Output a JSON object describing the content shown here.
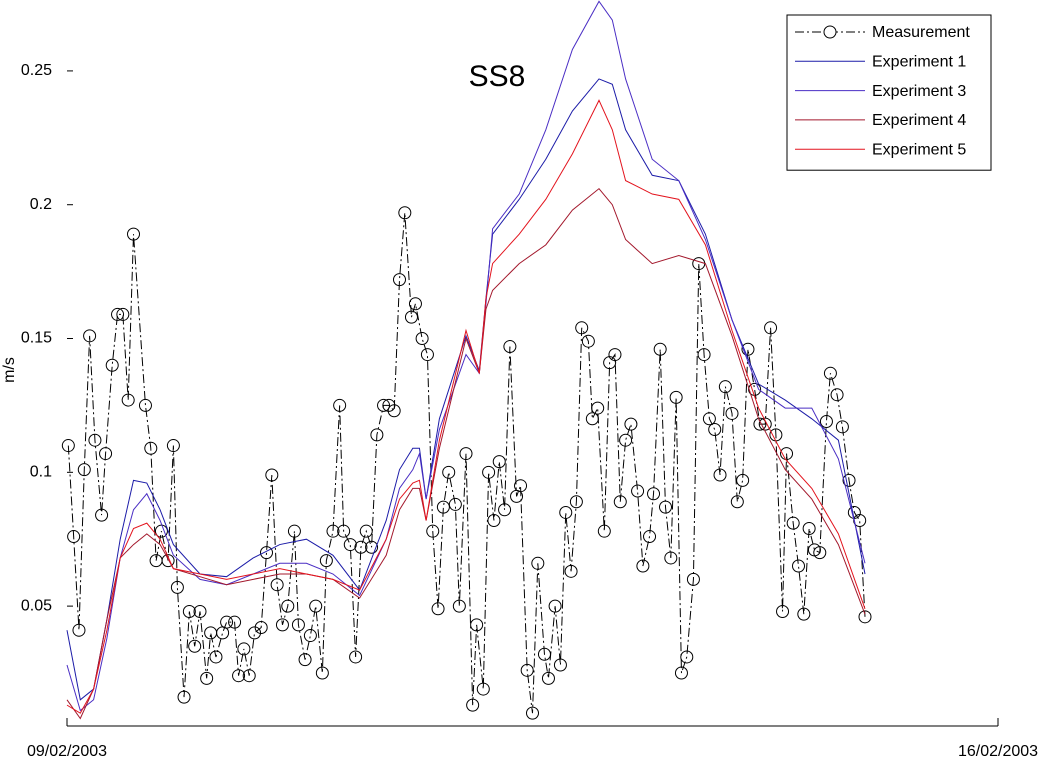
{
  "chart_data": {
    "type": "line",
    "title": "SS8",
    "ylabel": "m/s",
    "xlim": [
      0,
      7
    ],
    "xticks": [
      {
        "value": 0,
        "label": "09/02/2003"
      },
      {
        "value": 7,
        "label": "16/02/2003"
      }
    ],
    "ylim": [
      0.0052,
      0.2765
    ],
    "yticks": [
      0.05,
      0.1,
      0.15,
      0.2,
      0.25
    ],
    "legend": "upper right",
    "series": [
      {
        "name": "Measurement",
        "color": "#000000",
        "marker": "circle",
        "linestyle": "dashdot",
        "x": [
          0.01,
          0.05,
          0.09,
          0.13,
          0.17,
          0.21,
          0.26,
          0.29,
          0.34,
          0.38,
          0.42,
          0.46,
          0.5,
          0.59,
          0.63,
          0.67,
          0.71,
          0.76,
          0.8,
          0.83,
          0.88,
          0.92,
          0.96,
          1.0,
          1.05,
          1.08,
          1.12,
          1.17,
          1.2,
          1.26,
          1.29,
          1.33,
          1.37,
          1.41,
          1.46,
          1.5,
          1.54,
          1.58,
          1.62,
          1.66,
          1.71,
          1.74,
          1.79,
          1.83,
          1.87,
          1.92,
          1.95,
          2.0,
          2.05,
          2.08,
          2.13,
          2.17,
          2.21,
          2.25,
          2.29,
          2.33,
          2.38,
          2.42,
          2.46,
          2.5,
          2.54,
          2.59,
          2.62,
          2.67,
          2.71,
          2.75,
          2.79,
          2.83,
          2.87,
          2.92,
          2.95,
          3.0,
          3.05,
          3.08,
          3.13,
          3.17,
          3.21,
          3.25,
          3.29,
          3.33,
          3.38,
          3.41,
          3.46,
          3.5,
          3.54,
          3.59,
          3.62,
          3.67,
          3.71,
          3.75,
          3.79,
          3.83,
          3.87,
          3.92,
          3.95,
          3.99,
          4.04,
          4.08,
          4.12,
          4.16,
          4.2,
          4.24,
          4.29,
          4.33,
          4.38,
          4.41,
          4.46,
          4.5,
          4.54,
          4.58,
          4.62,
          4.66,
          4.71,
          4.75,
          4.79,
          4.83,
          4.87,
          4.91,
          4.95,
          5.0,
          5.04,
          5.08,
          5.12,
          5.17,
          5.21,
          5.25,
          5.29,
          5.33,
          5.38,
          5.41,
          5.46,
          5.5,
          5.54,
          5.58,
          5.62,
          5.66,
          5.71,
          5.74,
          5.79,
          5.83,
          5.88,
          5.92,
          5.96,
          6.0
        ],
        "values": [
          0.11,
          0.076,
          0.041,
          0.101,
          0.151,
          0.112,
          0.084,
          0.107,
          0.14,
          0.159,
          0.159,
          0.127,
          0.189,
          0.125,
          0.109,
          0.067,
          0.078,
          0.067,
          0.11,
          0.057,
          0.016,
          0.048,
          0.035,
          0.048,
          0.023,
          0.04,
          0.031,
          0.04,
          0.044,
          0.044,
          0.024,
          0.034,
          0.024,
          0.04,
          0.042,
          0.07,
          0.099,
          0.058,
          0.043,
          0.05,
          0.078,
          0.043,
          0.03,
          0.039,
          0.05,
          0.025,
          0.067,
          0.078,
          0.125,
          0.078,
          0.073,
          0.031,
          0.072,
          0.078,
          0.072,
          0.114,
          0.125,
          0.125,
          0.123,
          0.172,
          0.197,
          0.158,
          0.163,
          0.15,
          0.144,
          0.078,
          0.049,
          0.087,
          0.1,
          0.088,
          0.05,
          0.107,
          0.013,
          0.043,
          0.019,
          0.1,
          0.082,
          0.104,
          0.086,
          0.147,
          0.091,
          0.095,
          0.026,
          0.01,
          0.066,
          0.032,
          0.023,
          0.05,
          0.028,
          0.085,
          0.063,
          0.089,
          0.154,
          0.149,
          0.12,
          0.124,
          0.078,
          0.141,
          0.144,
          0.089,
          0.112,
          0.118,
          0.093,
          0.065,
          0.076,
          0.092,
          0.146,
          0.087,
          0.068,
          0.128,
          0.025,
          0.031,
          0.06,
          0.178,
          0.144,
          0.12,
          0.116,
          0.099,
          0.132,
          0.122,
          0.089,
          0.097,
          0.146,
          0.131,
          0.118,
          0.118,
          0.154,
          0.114,
          0.048,
          0.107,
          0.081,
          0.065,
          0.047,
          0.079,
          0.071,
          0.07,
          0.119,
          0.137,
          0.129,
          0.117,
          0.097,
          0.085,
          0.082,
          0.046
        ]
      },
      {
        "name": "Experiment 1",
        "color": "#1c1ca8",
        "x": [
          0,
          0.1,
          0.2,
          0.3,
          0.4,
          0.5,
          0.6,
          0.7,
          0.8,
          1.0,
          1.2,
          1.4,
          1.6,
          1.8,
          2.0,
          2.2,
          2.4,
          2.5,
          2.6,
          2.65,
          2.7,
          2.8,
          3.0,
          3.1,
          3.15,
          3.2,
          3.4,
          3.6,
          3.8,
          4.0,
          4.1,
          4.2,
          4.4,
          4.6,
          4.8,
          5.0,
          5.2,
          5.4,
          5.6,
          5.8,
          6.0
        ],
        "values": [
          0.041,
          0.015,
          0.019,
          0.045,
          0.075,
          0.097,
          0.096,
          0.086,
          0.073,
          0.062,
          0.061,
          0.068,
          0.073,
          0.075,
          0.069,
          0.056,
          0.082,
          0.101,
          0.109,
          0.109,
          0.09,
          0.12,
          0.151,
          0.138,
          0.165,
          0.189,
          0.202,
          0.217,
          0.235,
          0.247,
          0.245,
          0.228,
          0.211,
          0.209,
          0.189,
          0.157,
          0.133,
          0.127,
          0.12,
          0.112,
          0.062
        ]
      },
      {
        "name": "Experiment 3",
        "color": "#4a2ec4",
        "x": [
          0,
          0.1,
          0.2,
          0.3,
          0.4,
          0.5,
          0.6,
          0.7,
          0.8,
          1.0,
          1.2,
          1.4,
          1.6,
          1.8,
          2.0,
          2.2,
          2.4,
          2.5,
          2.6,
          2.65,
          2.7,
          2.8,
          3.0,
          3.1,
          3.15,
          3.2,
          3.4,
          3.6,
          3.8,
          4.0,
          4.1,
          4.2,
          4.4,
          4.6,
          4.8,
          5.0,
          5.2,
          5.4,
          5.6,
          5.8,
          6.0
        ],
        "values": [
          0.028,
          0.011,
          0.015,
          0.038,
          0.068,
          0.086,
          0.092,
          0.082,
          0.069,
          0.06,
          0.058,
          0.062,
          0.066,
          0.066,
          0.062,
          0.054,
          0.075,
          0.094,
          0.101,
          0.107,
          0.09,
          0.116,
          0.144,
          0.137,
          0.163,
          0.191,
          0.204,
          0.228,
          0.258,
          0.276,
          0.269,
          0.247,
          0.217,
          0.209,
          0.187,
          0.157,
          0.131,
          0.124,
          0.124,
          0.105,
          0.066
        ]
      },
      {
        "name": "Experiment 4",
        "color": "#a3182c",
        "x": [
          0,
          0.1,
          0.2,
          0.3,
          0.4,
          0.5,
          0.6,
          0.7,
          0.8,
          1.0,
          1.2,
          1.4,
          1.6,
          1.8,
          2.0,
          2.2,
          2.4,
          2.5,
          2.6,
          2.65,
          2.7,
          2.8,
          3.0,
          3.1,
          3.15,
          3.2,
          3.4,
          3.6,
          3.8,
          4.0,
          4.1,
          4.2,
          4.4,
          4.6,
          4.8,
          5.0,
          5.2,
          5.4,
          5.6,
          5.8,
          6.0
        ],
        "values": [
          0.015,
          0.008,
          0.019,
          0.045,
          0.068,
          0.073,
          0.077,
          0.073,
          0.064,
          0.061,
          0.058,
          0.06,
          0.062,
          0.062,
          0.06,
          0.053,
          0.069,
          0.086,
          0.094,
          0.094,
          0.082,
          0.109,
          0.15,
          0.137,
          0.161,
          0.168,
          0.178,
          0.185,
          0.198,
          0.206,
          0.2,
          0.187,
          0.178,
          0.181,
          0.178,
          0.151,
          0.12,
          0.101,
          0.09,
          0.073,
          0.047
        ]
      },
      {
        "name": "Experiment 5",
        "color": "#e3141e",
        "x": [
          0,
          0.1,
          0.2,
          0.3,
          0.4,
          0.5,
          0.6,
          0.7,
          0.8,
          1.0,
          1.2,
          1.4,
          1.6,
          1.8,
          2.0,
          2.2,
          2.4,
          2.5,
          2.6,
          2.65,
          2.7,
          2.8,
          3.0,
          3.1,
          3.15,
          3.2,
          3.4,
          3.6,
          3.8,
          4.0,
          4.1,
          4.2,
          4.4,
          4.6,
          4.8,
          5.0,
          5.2,
          5.4,
          5.6,
          5.8,
          6.0
        ],
        "values": [
          0.013,
          0.01,
          0.019,
          0.041,
          0.068,
          0.079,
          0.081,
          0.075,
          0.064,
          0.062,
          0.06,
          0.062,
          0.064,
          0.062,
          0.06,
          0.056,
          0.075,
          0.09,
          0.096,
          0.097,
          0.082,
          0.112,
          0.153,
          0.137,
          0.165,
          0.178,
          0.189,
          0.202,
          0.219,
          0.239,
          0.228,
          0.209,
          0.204,
          0.202,
          0.185,
          0.153,
          0.124,
          0.105,
          0.094,
          0.077,
          0.049
        ]
      }
    ]
  }
}
